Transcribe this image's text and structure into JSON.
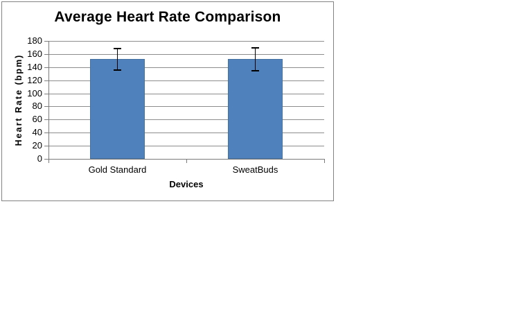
{
  "chart_data": {
    "type": "bar",
    "title": "Average Heart Rate Comparison",
    "xlabel": "Devices",
    "ylabel": "Heart Rate (bpm)",
    "categories": [
      "Gold Standard",
      "SweatBuds"
    ],
    "series": [
      {
        "values": [
          152,
          152
        ],
        "error_bars": [
          16,
          17
        ]
      }
    ],
    "ylim": [
      0,
      180
    ],
    "ytick_step": 20,
    "ytick_labels": [
      "0",
      "20",
      "40",
      "60",
      "80",
      "100",
      "120",
      "140",
      "160",
      "180"
    ],
    "grid": true,
    "legend_position": "none",
    "colors": {
      "bar_fill": "#4F81BD",
      "bar_border": "#44719F",
      "error_bar": "#000000",
      "gridline": "#8C8C8C",
      "axis_line": "#7A7A7A",
      "frame_border": "#828282",
      "background": "#FFFFFF",
      "text": "#000000"
    }
  }
}
